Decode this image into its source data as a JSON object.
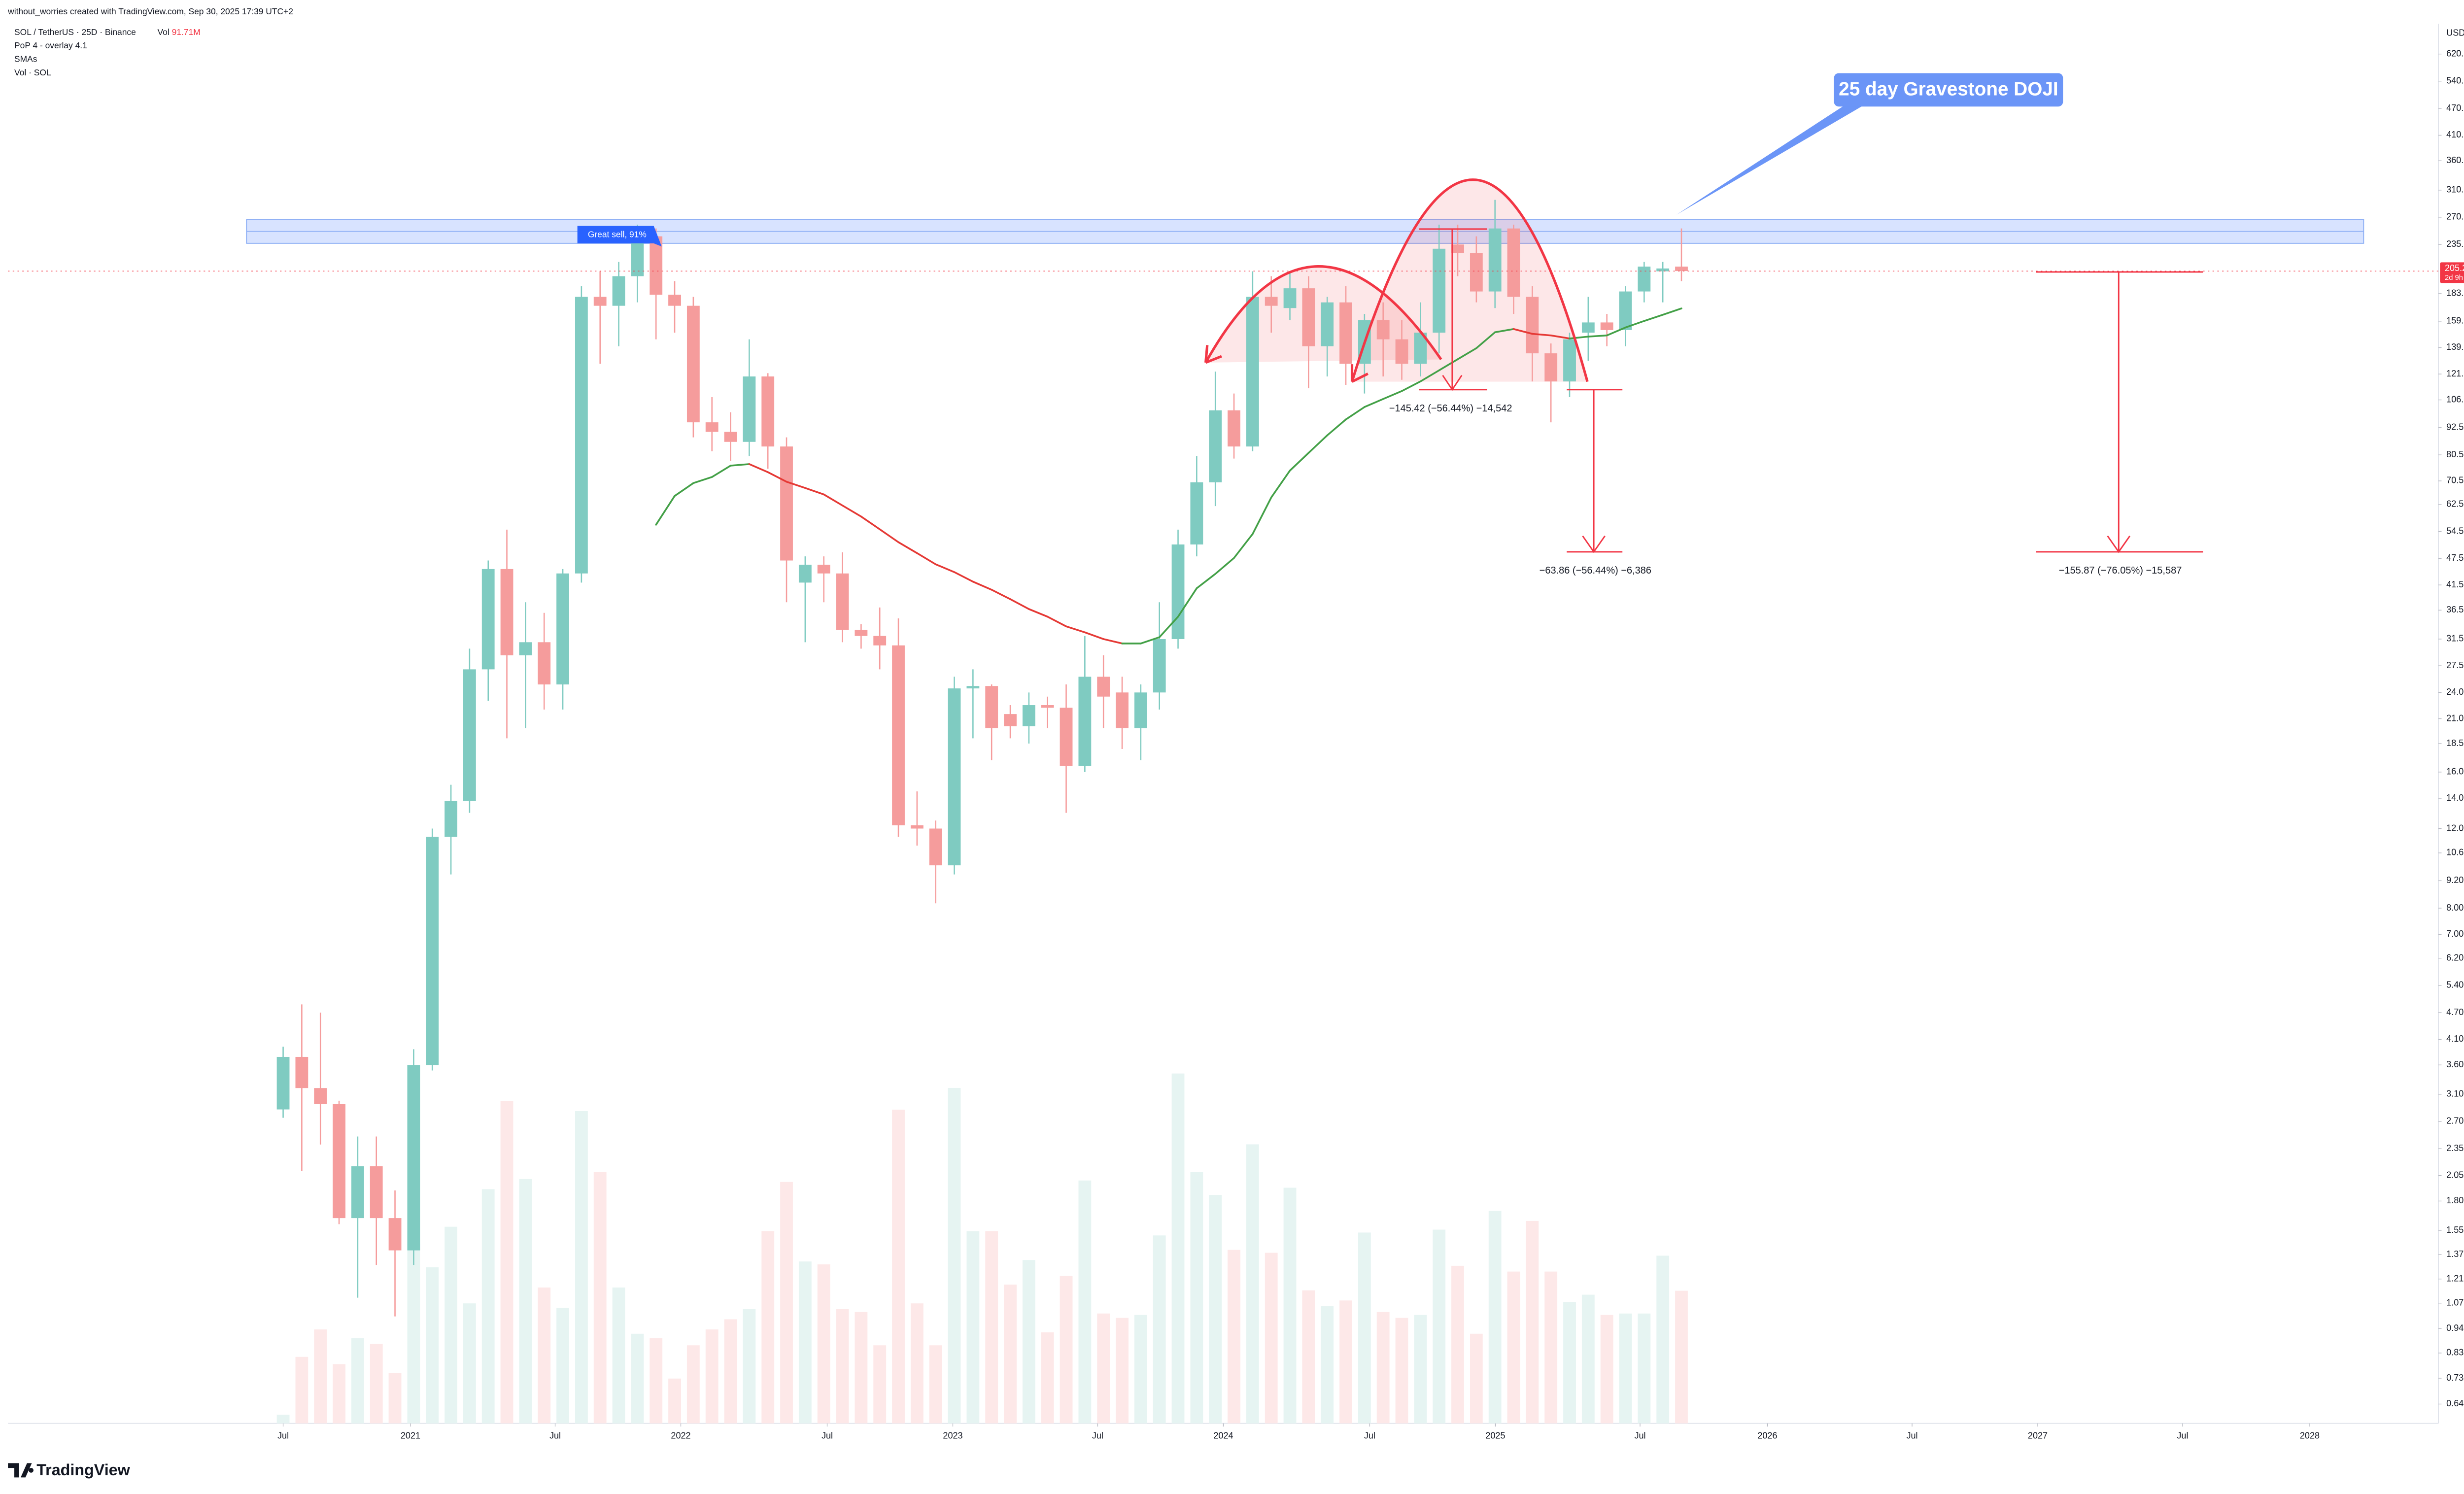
{
  "header": {
    "credit": "without_worries created with TradingView.com, Sep 30, 2025 17:39 UTC+2",
    "logo": "TradingView"
  },
  "chart_data": {
    "type": "candlestick",
    "title": "SOL / TetherUS · 25D · Binance",
    "volume_name": "Vol",
    "volume_label": "91.71M",
    "indicators": [
      "PoP 4 - overlay 4.1",
      "SMAs",
      "Vol · SOL"
    ],
    "axis_unit": "USDT",
    "countdown": "2d 9h",
    "log_scale": true,
    "grid": false,
    "up_color": "#7fcbc1",
    "down_color": "#f59c9c",
    "volume_up_color": "#e6f4f2",
    "volume_down_color": "#fde8e8",
    "open": [
      2.87,
      3.75,
      3.2,
      2.95,
      1.65,
      2.15,
      1.65,
      1.4,
      3.6,
      11.5,
      13.8,
      27,
      45,
      29,
      31,
      25,
      44,
      180,
      172,
      200,
      245,
      182,
      172,
      95,
      90.5,
      86,
      120,
      84,
      42,
      46,
      44,
      33,
      32,
      30.5,
      12.2,
      12.0,
      9.95,
      24.5,
      24.8,
      21.5,
      20.2,
      22.5,
      22.2,
      16.5,
      26,
      24,
      20,
      24,
      31.5,
      51,
      70,
      101,
      84,
      180,
      170,
      188,
      140,
      175,
      128,
      160,
      145,
      128,
      150,
      235,
      225,
      185,
      255,
      180,
      135,
      117,
      150,
      158,
      152,
      185,
      205,
      210
    ],
    "high": [
      3.95,
      4.9,
      4.7,
      3.0,
      2.5,
      2.5,
      1.9,
      3.9,
      12,
      15,
      30,
      47,
      55,
      38,
      36,
      45,
      190,
      205,
      215,
      260,
      255,
      195,
      180,
      108,
      100,
      145,
      122,
      88,
      48,
      48,
      49,
      34,
      37,
      35,
      14.5,
      12.5,
      26,
      27,
      25,
      22.5,
      24,
      23.5,
      25,
      32,
      29,
      26,
      25,
      38,
      55,
      80,
      123,
      110,
      205,
      200,
      205,
      200,
      180,
      190,
      165,
      175,
      160,
      175,
      260,
      260,
      245,
      295,
      260,
      190,
      142,
      150,
      180,
      165,
      190,
      215,
      215,
      255
    ],
    "low": [
      2.75,
      2.1,
      2.4,
      1.6,
      1.1,
      1.3,
      1.0,
      1.3,
      3.5,
      9.5,
      13,
      23,
      19,
      20,
      22,
      22,
      42,
      128,
      140,
      175,
      145,
      150,
      88,
      82,
      78,
      80,
      75,
      38,
      31,
      38,
      31,
      30,
      27,
      11.5,
      11,
      8.2,
      9.5,
      19,
      17,
      19,
      18.5,
      20,
      13,
      16,
      20,
      18,
      17,
      22,
      30,
      48,
      62,
      79,
      82,
      150,
      160,
      113,
      120,
      115,
      110,
      120,
      118,
      120,
      135,
      200,
      175,
      170,
      165,
      117,
      95,
      108,
      130,
      140,
      140,
      175,
      175,
      195
    ],
    "close": [
      3.75,
      3.2,
      2.95,
      1.65,
      2.15,
      1.65,
      1.4,
      3.6,
      11.5,
      13.8,
      27,
      45,
      29,
      31,
      25,
      44,
      180,
      172,
      200,
      245,
      182,
      172,
      95,
      90.5,
      86,
      120,
      84,
      47,
      46,
      44,
      33,
      32,
      30.5,
      12.2,
      12.0,
      9.95,
      24.5,
      24.8,
      20,
      20.2,
      22.5,
      22.2,
      16.5,
      26,
      23.5,
      20,
      24,
      31.5,
      51,
      70,
      101,
      84,
      180,
      172,
      188,
      140,
      175,
      128,
      160,
      145,
      128,
      150,
      230,
      225,
      185,
      255,
      180,
      135,
      117,
      145,
      158,
      152,
      185,
      210,
      208,
      205.28
    ],
    "volume": [
      6,
      46,
      65,
      41,
      59,
      55,
      35,
      124,
      108,
      136,
      83,
      162,
      223,
      169,
      94,
      80,
      216,
      174,
      94,
      62,
      59,
      31,
      54,
      65,
      72,
      79,
      133,
      167,
      112,
      110,
      79,
      77,
      54,
      217,
      83,
      54,
      232,
      133,
      133,
      96,
      113,
      63,
      102,
      168,
      76,
      73,
      75,
      130,
      242,
      174,
      158,
      120,
      193,
      118,
      163,
      92,
      81,
      85,
      132,
      77,
      73,
      75,
      134,
      109,
      62,
      147,
      105,
      140,
      105,
      84,
      89,
      75,
      76,
      76,
      116,
      91.71
    ],
    "sma": {
      "rising_color": "#43a047",
      "falling_color": "#e53935",
      "values": [
        null,
        null,
        null,
        null,
        null,
        null,
        null,
        null,
        null,
        null,
        null,
        null,
        null,
        null,
        null,
        null,
        null,
        null,
        null,
        null,
        56.4,
        65.3,
        69.7,
        71.9,
        76.2,
        76.8,
        73.7,
        70.2,
        68.0,
        65.8,
        62.2,
        58.8,
        55.1,
        51.6,
        48.8,
        46.1,
        44.3,
        42.2,
        40.5,
        38.6,
        36.7,
        35.3,
        33.6,
        32.6,
        31.5,
        30.8,
        30.8,
        31.8,
        35.3,
        40.8,
        43.9,
        47.6,
        53.8,
        64.8,
        74.3,
        81.3,
        88.9,
        96.4,
        102.7,
        107.0,
        111.4,
        117.0,
        123.8,
        131.0,
        138.6,
        150.3,
        152.8,
        149.1,
        147.9,
        145.6,
        147,
        147.9,
        154.0,
        159.2,
        164.3,
        169.7
      ]
    },
    "xlim": [
      -14.76,
      115.6
    ],
    "xticks": [
      {
        "value": 0,
        "label": "Jul"
      },
      {
        "value": 6.83,
        "label": "2021"
      },
      {
        "value": 14.59,
        "label": "Jul"
      },
      {
        "value": 21.33,
        "label": "2022"
      },
      {
        "value": 29.18,
        "label": "Jul"
      },
      {
        "value": 35.92,
        "label": "2023"
      },
      {
        "value": 43.69,
        "label": "Jul"
      },
      {
        "value": 50.43,
        "label": "2024"
      },
      {
        "value": 58.28,
        "label": "Jul"
      },
      {
        "value": 65.02,
        "label": "2025"
      },
      {
        "value": 72.78,
        "label": "Jul"
      },
      {
        "value": 79.61,
        "label": "2026"
      },
      {
        "value": 87.37,
        "label": "Jul"
      },
      {
        "value": 94.11,
        "label": "2027"
      },
      {
        "value": 101.88,
        "label": "Jul"
      },
      {
        "value": 108.7,
        "label": "2028"
      }
    ],
    "ylim": [
      0.58,
      723
    ],
    "yticks": [
      {
        "value": 620,
        "label": "620.00"
      },
      {
        "value": 540,
        "label": "540.00"
      },
      {
        "value": 470,
        "label": "470.00"
      },
      {
        "value": 410,
        "label": "410.00"
      },
      {
        "value": 360,
        "label": "360.00"
      },
      {
        "value": 310,
        "label": "310.00"
      },
      {
        "value": 270,
        "label": "270.00"
      },
      {
        "value": 235,
        "label": "235.00"
      },
      {
        "value": 183,
        "label": "183.00"
      },
      {
        "value": 159,
        "label": "159.00"
      },
      {
        "value": 139,
        "label": "139.00"
      },
      {
        "value": 121.5,
        "label": "121.50"
      },
      {
        "value": 106.5,
        "label": "106.50"
      },
      {
        "value": 92.5,
        "label": "92.50"
      },
      {
        "value": 80.5,
        "label": "80.50"
      },
      {
        "value": 70.5,
        "label": "70.50"
      },
      {
        "value": 62.5,
        "label": "62.50"
      },
      {
        "value": 54.5,
        "label": "54.50"
      },
      {
        "value": 47.5,
        "label": "47.50"
      },
      {
        "value": 41.5,
        "label": "41.50"
      },
      {
        "value": 36.5,
        "label": "36.50"
      },
      {
        "value": 31.5,
        "label": "31.50"
      },
      {
        "value": 27.5,
        "label": "27.50"
      },
      {
        "value": 24,
        "label": "24.00"
      },
      {
        "value": 21,
        "label": "21.00"
      },
      {
        "value": 18.5,
        "label": "18.50"
      },
      {
        "value": 16,
        "label": "16.00"
      },
      {
        "value": 14,
        "label": "14.00"
      },
      {
        "value": 12,
        "label": "12.00"
      },
      {
        "value": 10.6,
        "label": "10.60"
      },
      {
        "value": 9.2,
        "label": "9.20"
      },
      {
        "value": 8,
        "label": "8.00"
      },
      {
        "value": 7,
        "label": "7.00"
      },
      {
        "value": 6.2,
        "label": "6.20"
      },
      {
        "value": 5.4,
        "label": "5.40"
      },
      {
        "value": 4.7,
        "label": "4.70"
      },
      {
        "value": 4.1,
        "label": "4.10"
      },
      {
        "value": 3.6,
        "label": "3.60"
      },
      {
        "value": 3.1,
        "label": "3.10"
      },
      {
        "value": 2.7,
        "label": "2.70"
      },
      {
        "value": 2.35,
        "label": "2.35"
      },
      {
        "value": 2.05,
        "label": "2.05"
      },
      {
        "value": 1.8,
        "label": "1.80"
      },
      {
        "value": 1.55,
        "label": "1.55"
      },
      {
        "value": 1.37,
        "label": "1.37"
      },
      {
        "value": 1.21,
        "label": "1.21"
      },
      {
        "value": 1.07,
        "label": "1.07"
      },
      {
        "value": 0.94,
        "label": "0.94"
      },
      {
        "value": 0.83,
        "label": "0.83"
      },
      {
        "value": 0.73,
        "label": "0.73"
      },
      {
        "value": 0.64,
        "label": "0.64"
      }
    ],
    "annotations": {
      "signal": "Great sell, 91%",
      "callout": "25 day Gravestone DOJI",
      "measures": [
        "−145.42 (−56.44%) −14,542",
        "−63.86 (−56.44%) −6,386",
        "−155.87 (−76.05%) −15,587"
      ]
    }
  }
}
